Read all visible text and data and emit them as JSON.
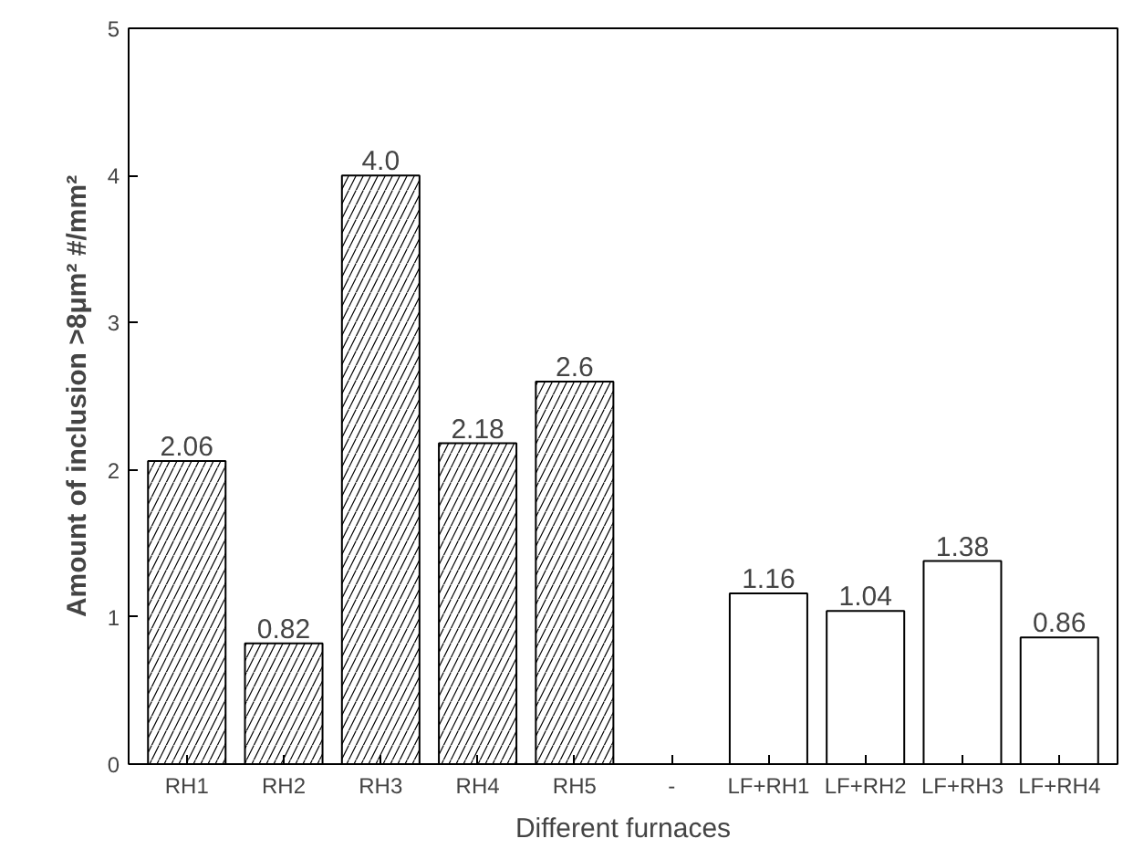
{
  "chart_data": {
    "type": "bar",
    "xlabel": "Different furnaces",
    "ylabel": "Amount of inclusion >8μm² #/mm²",
    "categories": [
      "RH1",
      "RH2",
      "RH3",
      "RH4",
      "RH5",
      "-",
      "LF+RH1",
      "LF+RH2",
      "LF+RH3",
      "LF+RH4"
    ],
    "series": [
      {
        "color": "#ffffff",
        "values": [
          2.06,
          0.82,
          4.0,
          2.18,
          2.6,
          null,
          null,
          null,
          null,
          null
        ],
        "value_labels": [
          "2.06",
          "0.82",
          "4.0",
          "2.18",
          "2.6",
          null,
          null,
          null,
          null,
          null
        ]
      },
      {
        "color": "#ffffff",
        "values": [
          null,
          null,
          null,
          null,
          null,
          null,
          1.16,
          1.04,
          1.38,
          0.86
        ],
        "value_labels": [
          null,
          null,
          null,
          null,
          null,
          null,
          "1.16",
          "1.04",
          "1.38",
          "0.86"
        ]
      }
    ],
    "ylim": [
      0,
      5
    ],
    "yticks": [
      0,
      1,
      2,
      3,
      4,
      5
    ],
    "grid": false
  }
}
